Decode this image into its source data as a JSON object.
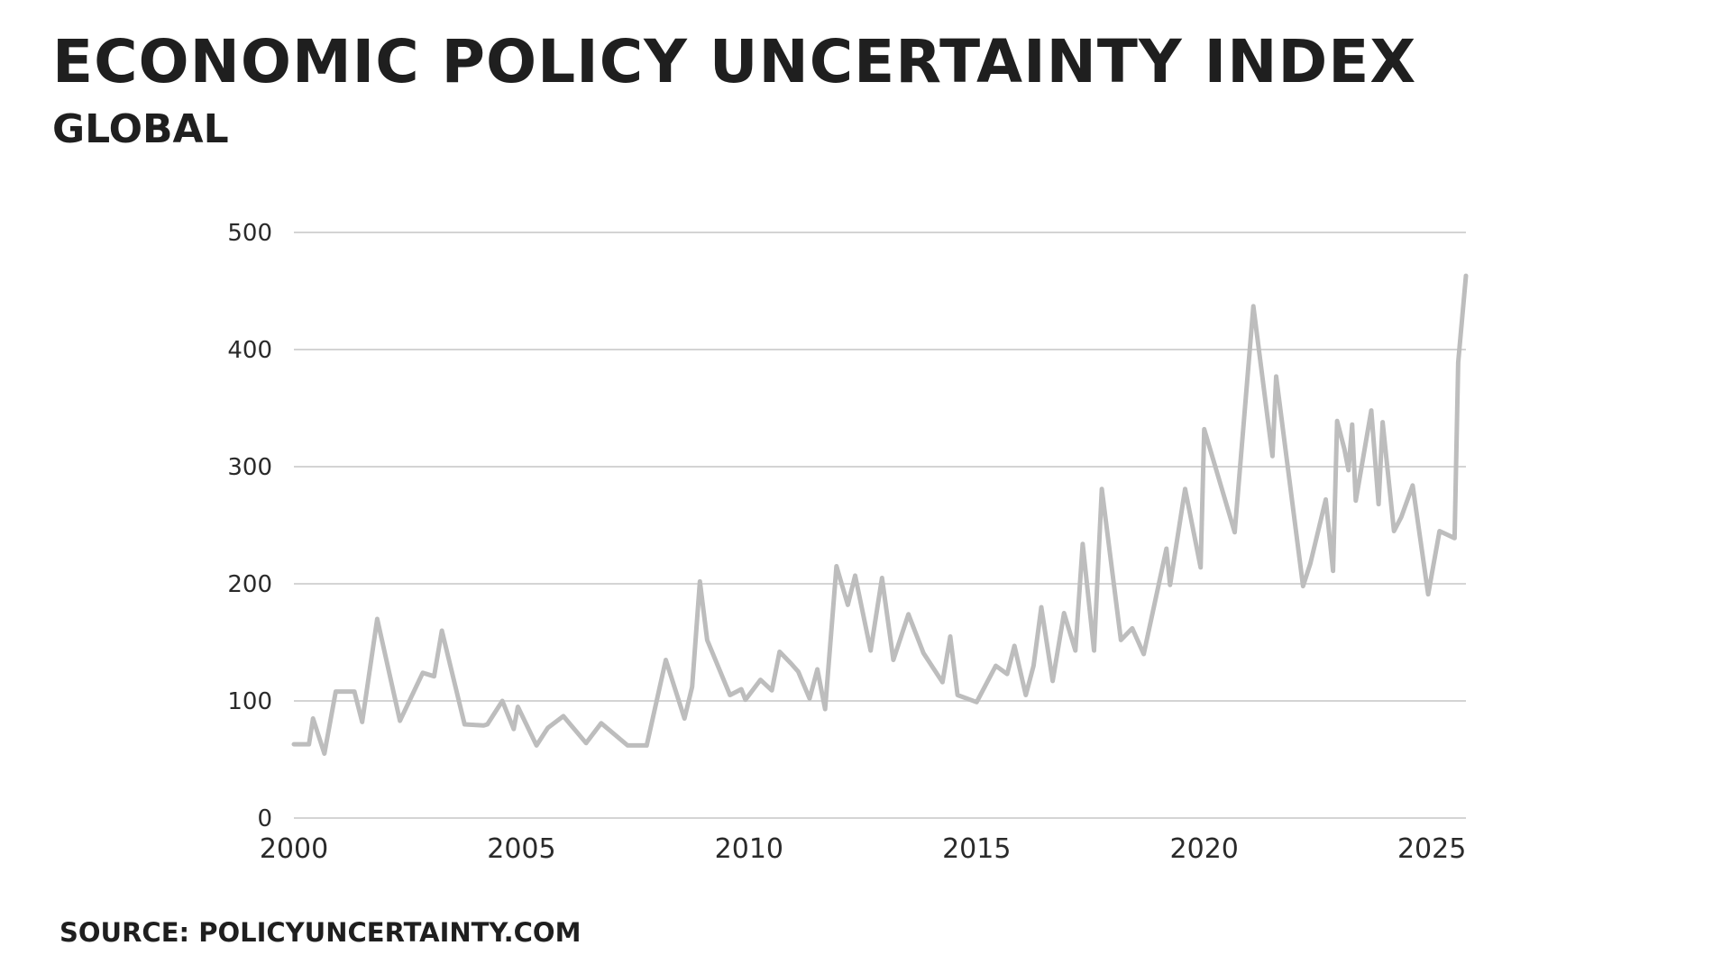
{
  "header": {
    "title": "Economic Policy Uncertainty Index",
    "subtitle": "Global"
  },
  "footer": {
    "source": "Source: policyuncertainty.com"
  },
  "colors": {
    "line": "#bdbdbd",
    "grid": "#d4d4d4",
    "text": "#1f1f1f"
  },
  "chart_data": {
    "type": "line",
    "title": "Economic Policy Uncertainty Index",
    "subtitle": "Global",
    "xlabel": "",
    "ylabel": "",
    "xlim": [
      2000,
      2025.75
    ],
    "ylim": [
      0,
      500
    ],
    "y_ticks": [
      0,
      100,
      200,
      300,
      400,
      500
    ],
    "x_ticks": [
      2000,
      2005,
      2010,
      2015,
      2020,
      2025
    ],
    "grid": true,
    "legend": "none",
    "series": [
      {
        "values": [
          [
            2000.0,
            63
          ],
          [
            2000.17,
            63
          ],
          [
            2000.33,
            63
          ],
          [
            2000.42,
            85
          ],
          [
            2000.67,
            55
          ],
          [
            2000.92,
            108
          ],
          [
            2001.08,
            108
          ],
          [
            2001.33,
            108
          ],
          [
            2001.5,
            82
          ],
          [
            2001.83,
            170
          ],
          [
            2002.33,
            83
          ],
          [
            2002.83,
            124
          ],
          [
            2003.08,
            121
          ],
          [
            2003.25,
            160
          ],
          [
            2003.75,
            80
          ],
          [
            2004.17,
            79
          ],
          [
            2004.25,
            80
          ],
          [
            2004.58,
            100
          ],
          [
            2004.83,
            76
          ],
          [
            2004.92,
            95
          ],
          [
            2005.33,
            62
          ],
          [
            2005.58,
            77
          ],
          [
            2005.92,
            87
          ],
          [
            2006.42,
            64
          ],
          [
            2006.75,
            81
          ],
          [
            2007.33,
            62
          ],
          [
            2007.75,
            62
          ],
          [
            2008.17,
            135
          ],
          [
            2008.58,
            85
          ],
          [
            2008.75,
            112
          ],
          [
            2008.92,
            202
          ],
          [
            2009.08,
            152
          ],
          [
            2009.58,
            105
          ],
          [
            2009.83,
            110
          ],
          [
            2009.92,
            101
          ],
          [
            2010.25,
            118
          ],
          [
            2010.5,
            109
          ],
          [
            2010.67,
            142
          ],
          [
            2010.92,
            132
          ],
          [
            2011.08,
            125
          ],
          [
            2011.33,
            102
          ],
          [
            2011.5,
            127
          ],
          [
            2011.67,
            93
          ],
          [
            2011.92,
            215
          ],
          [
            2012.17,
            182
          ],
          [
            2012.33,
            207
          ],
          [
            2012.67,
            143
          ],
          [
            2012.92,
            205
          ],
          [
            2013.17,
            135
          ],
          [
            2013.5,
            174
          ],
          [
            2013.83,
            141
          ],
          [
            2014.25,
            116
          ],
          [
            2014.42,
            155
          ],
          [
            2014.58,
            105
          ],
          [
            2015.0,
            99
          ],
          [
            2015.42,
            130
          ],
          [
            2015.67,
            123
          ],
          [
            2015.83,
            147
          ],
          [
            2016.08,
            105
          ],
          [
            2016.25,
            130
          ],
          [
            2016.42,
            180
          ],
          [
            2016.67,
            117
          ],
          [
            2016.92,
            175
          ],
          [
            2017.17,
            143
          ],
          [
            2017.33,
            234
          ],
          [
            2017.58,
            143
          ],
          [
            2017.75,
            281
          ],
          [
            2018.17,
            152
          ],
          [
            2018.42,
            162
          ],
          [
            2018.67,
            140
          ],
          [
            2019.17,
            230
          ],
          [
            2019.25,
            199
          ],
          [
            2019.58,
            281
          ],
          [
            2019.92,
            214
          ],
          [
            2020.0,
            332
          ],
          [
            2020.67,
            244
          ],
          [
            2021.08,
            437
          ],
          [
            2021.5,
            309
          ],
          [
            2021.58,
            377
          ],
          [
            2022.17,
            198
          ],
          [
            2022.33,
            217
          ],
          [
            2022.67,
            272
          ],
          [
            2022.83,
            211
          ],
          [
            2022.92,
            339
          ],
          [
            2023.08,
            315
          ],
          [
            2023.17,
            297
          ],
          [
            2023.25,
            336
          ],
          [
            2023.33,
            271
          ],
          [
            2023.67,
            348
          ],
          [
            2023.83,
            268
          ],
          [
            2023.92,
            338
          ],
          [
            2024.17,
            245
          ],
          [
            2024.33,
            257
          ],
          [
            2024.58,
            284
          ],
          [
            2024.92,
            191
          ],
          [
            2025.17,
            245
          ],
          [
            2025.5,
            239
          ],
          [
            2025.58,
            389
          ],
          [
            2025.75,
            463
          ]
        ]
      }
    ]
  }
}
